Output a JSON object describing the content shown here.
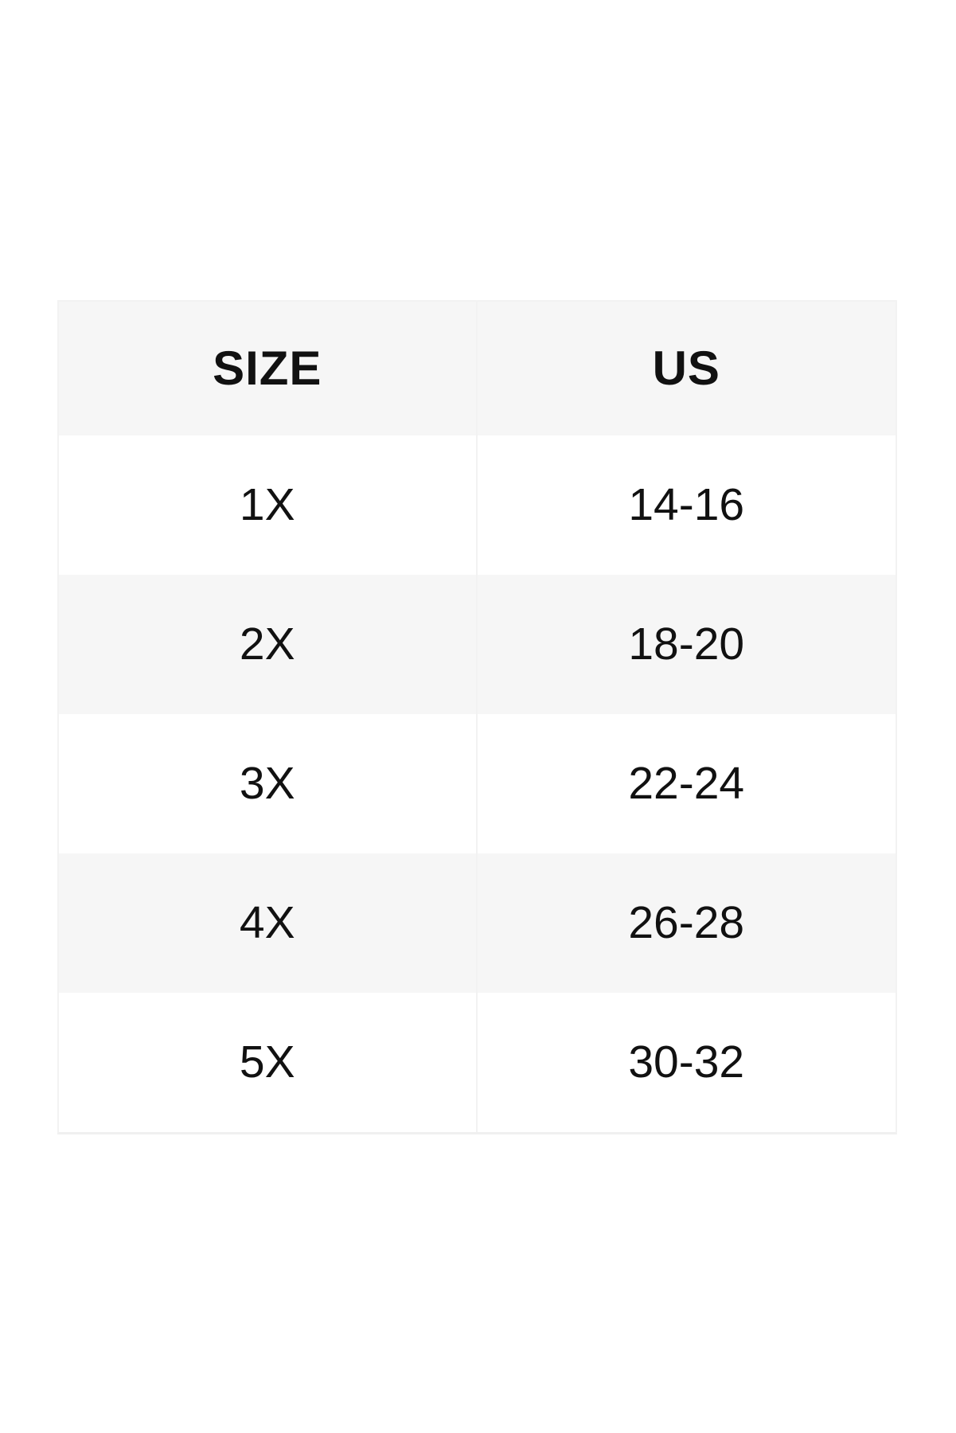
{
  "theme": {
    "page_bg": "#ffffff",
    "header_bg": "#f6f6f6",
    "row_bg": "#ffffff",
    "row_alt_bg": "#f6f6f6",
    "border": "#f2f2f2",
    "border_strong": "#f0f0f0",
    "text": "#111111"
  },
  "table": {
    "headers": [
      "SIZE",
      "US"
    ],
    "rows": [
      {
        "size": "1X",
        "us": "14-16"
      },
      {
        "size": "2X",
        "us": "18-20"
      },
      {
        "size": "3X",
        "us": "22-24"
      },
      {
        "size": "4X",
        "us": "26-28"
      },
      {
        "size": "5X",
        "us": "30-32"
      }
    ]
  }
}
